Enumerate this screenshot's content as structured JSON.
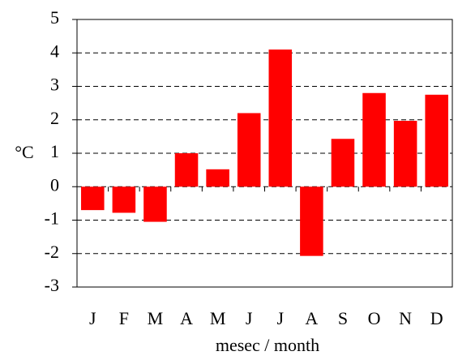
{
  "chart_data": {
    "type": "bar",
    "categories": [
      "J",
      "F",
      "M",
      "A",
      "M",
      "J",
      "J",
      "A",
      "S",
      "O",
      "N",
      "D"
    ],
    "values": [
      -0.7,
      -0.78,
      -1.05,
      1.0,
      0.52,
      2.2,
      4.1,
      -2.07,
      1.43,
      2.8,
      1.97,
      2.75
    ],
    "color": "#ff0000",
    "y_label": "°C",
    "x_label": "mesec / month",
    "ylim": [
      -3,
      5
    ],
    "yticks": [
      -3,
      -2,
      -1,
      0,
      1,
      2,
      3,
      4,
      5
    ],
    "grid": true
  }
}
